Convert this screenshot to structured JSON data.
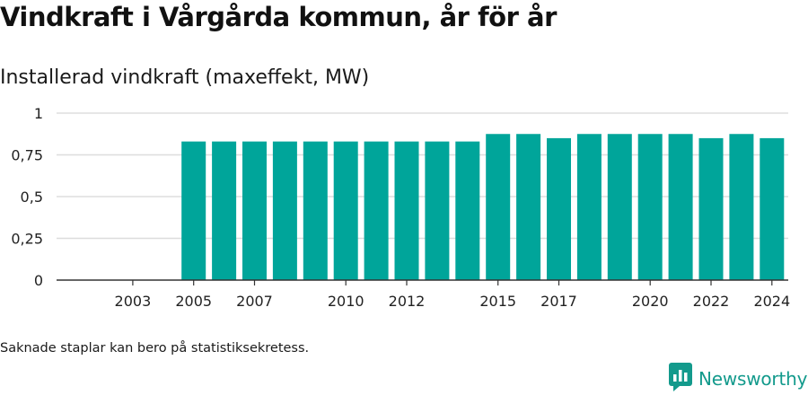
{
  "title": "Vindkraft i Vårgårda kommun, år för år",
  "subtitle": "Installerad vindkraft (maxeffekt, MW)",
  "footnote": "Saknade staplar kan bero på statistiksekretess.",
  "brand": {
    "name": "Newsworthy",
    "icon": "newsworthy-logo-icon",
    "color": "#139a8c"
  },
  "colors": {
    "bar": "#00a59a",
    "grid": "#dddddd",
    "axis": "#333333"
  },
  "chart_data": {
    "type": "bar",
    "title": "Vindkraft i Vårgårda kommun, år för år",
    "subtitle": "Installerad vindkraft (maxeffekt, MW)",
    "xlabel": "",
    "ylabel": "",
    "categories": [
      "2002",
      "2003",
      "2004",
      "2005",
      "2006",
      "2007",
      "2008",
      "2009",
      "2010",
      "2011",
      "2012",
      "2013",
      "2014",
      "2015",
      "2016",
      "2017",
      "2018",
      "2019",
      "2020",
      "2021",
      "2022",
      "2023",
      "2024"
    ],
    "values": [
      null,
      null,
      null,
      0.83,
      0.83,
      0.83,
      0.83,
      0.83,
      0.83,
      0.83,
      0.83,
      0.83,
      0.83,
      0.875,
      0.875,
      0.85,
      0.875,
      0.875,
      0.875,
      0.875,
      0.85,
      0.875,
      0.85
    ],
    "x_tick_labels": [
      "2003",
      "2005",
      "2007",
      "2010",
      "2012",
      "2015",
      "2017",
      "2020",
      "2022",
      "2024"
    ],
    "y_ticks": [
      0,
      0.25,
      0.5,
      0.75,
      1
    ],
    "y_tick_labels": [
      "0",
      "0,25",
      "0,5",
      "0,75",
      "1"
    ],
    "ylim": [
      0,
      1
    ],
    "grid": true,
    "legend": "none"
  }
}
